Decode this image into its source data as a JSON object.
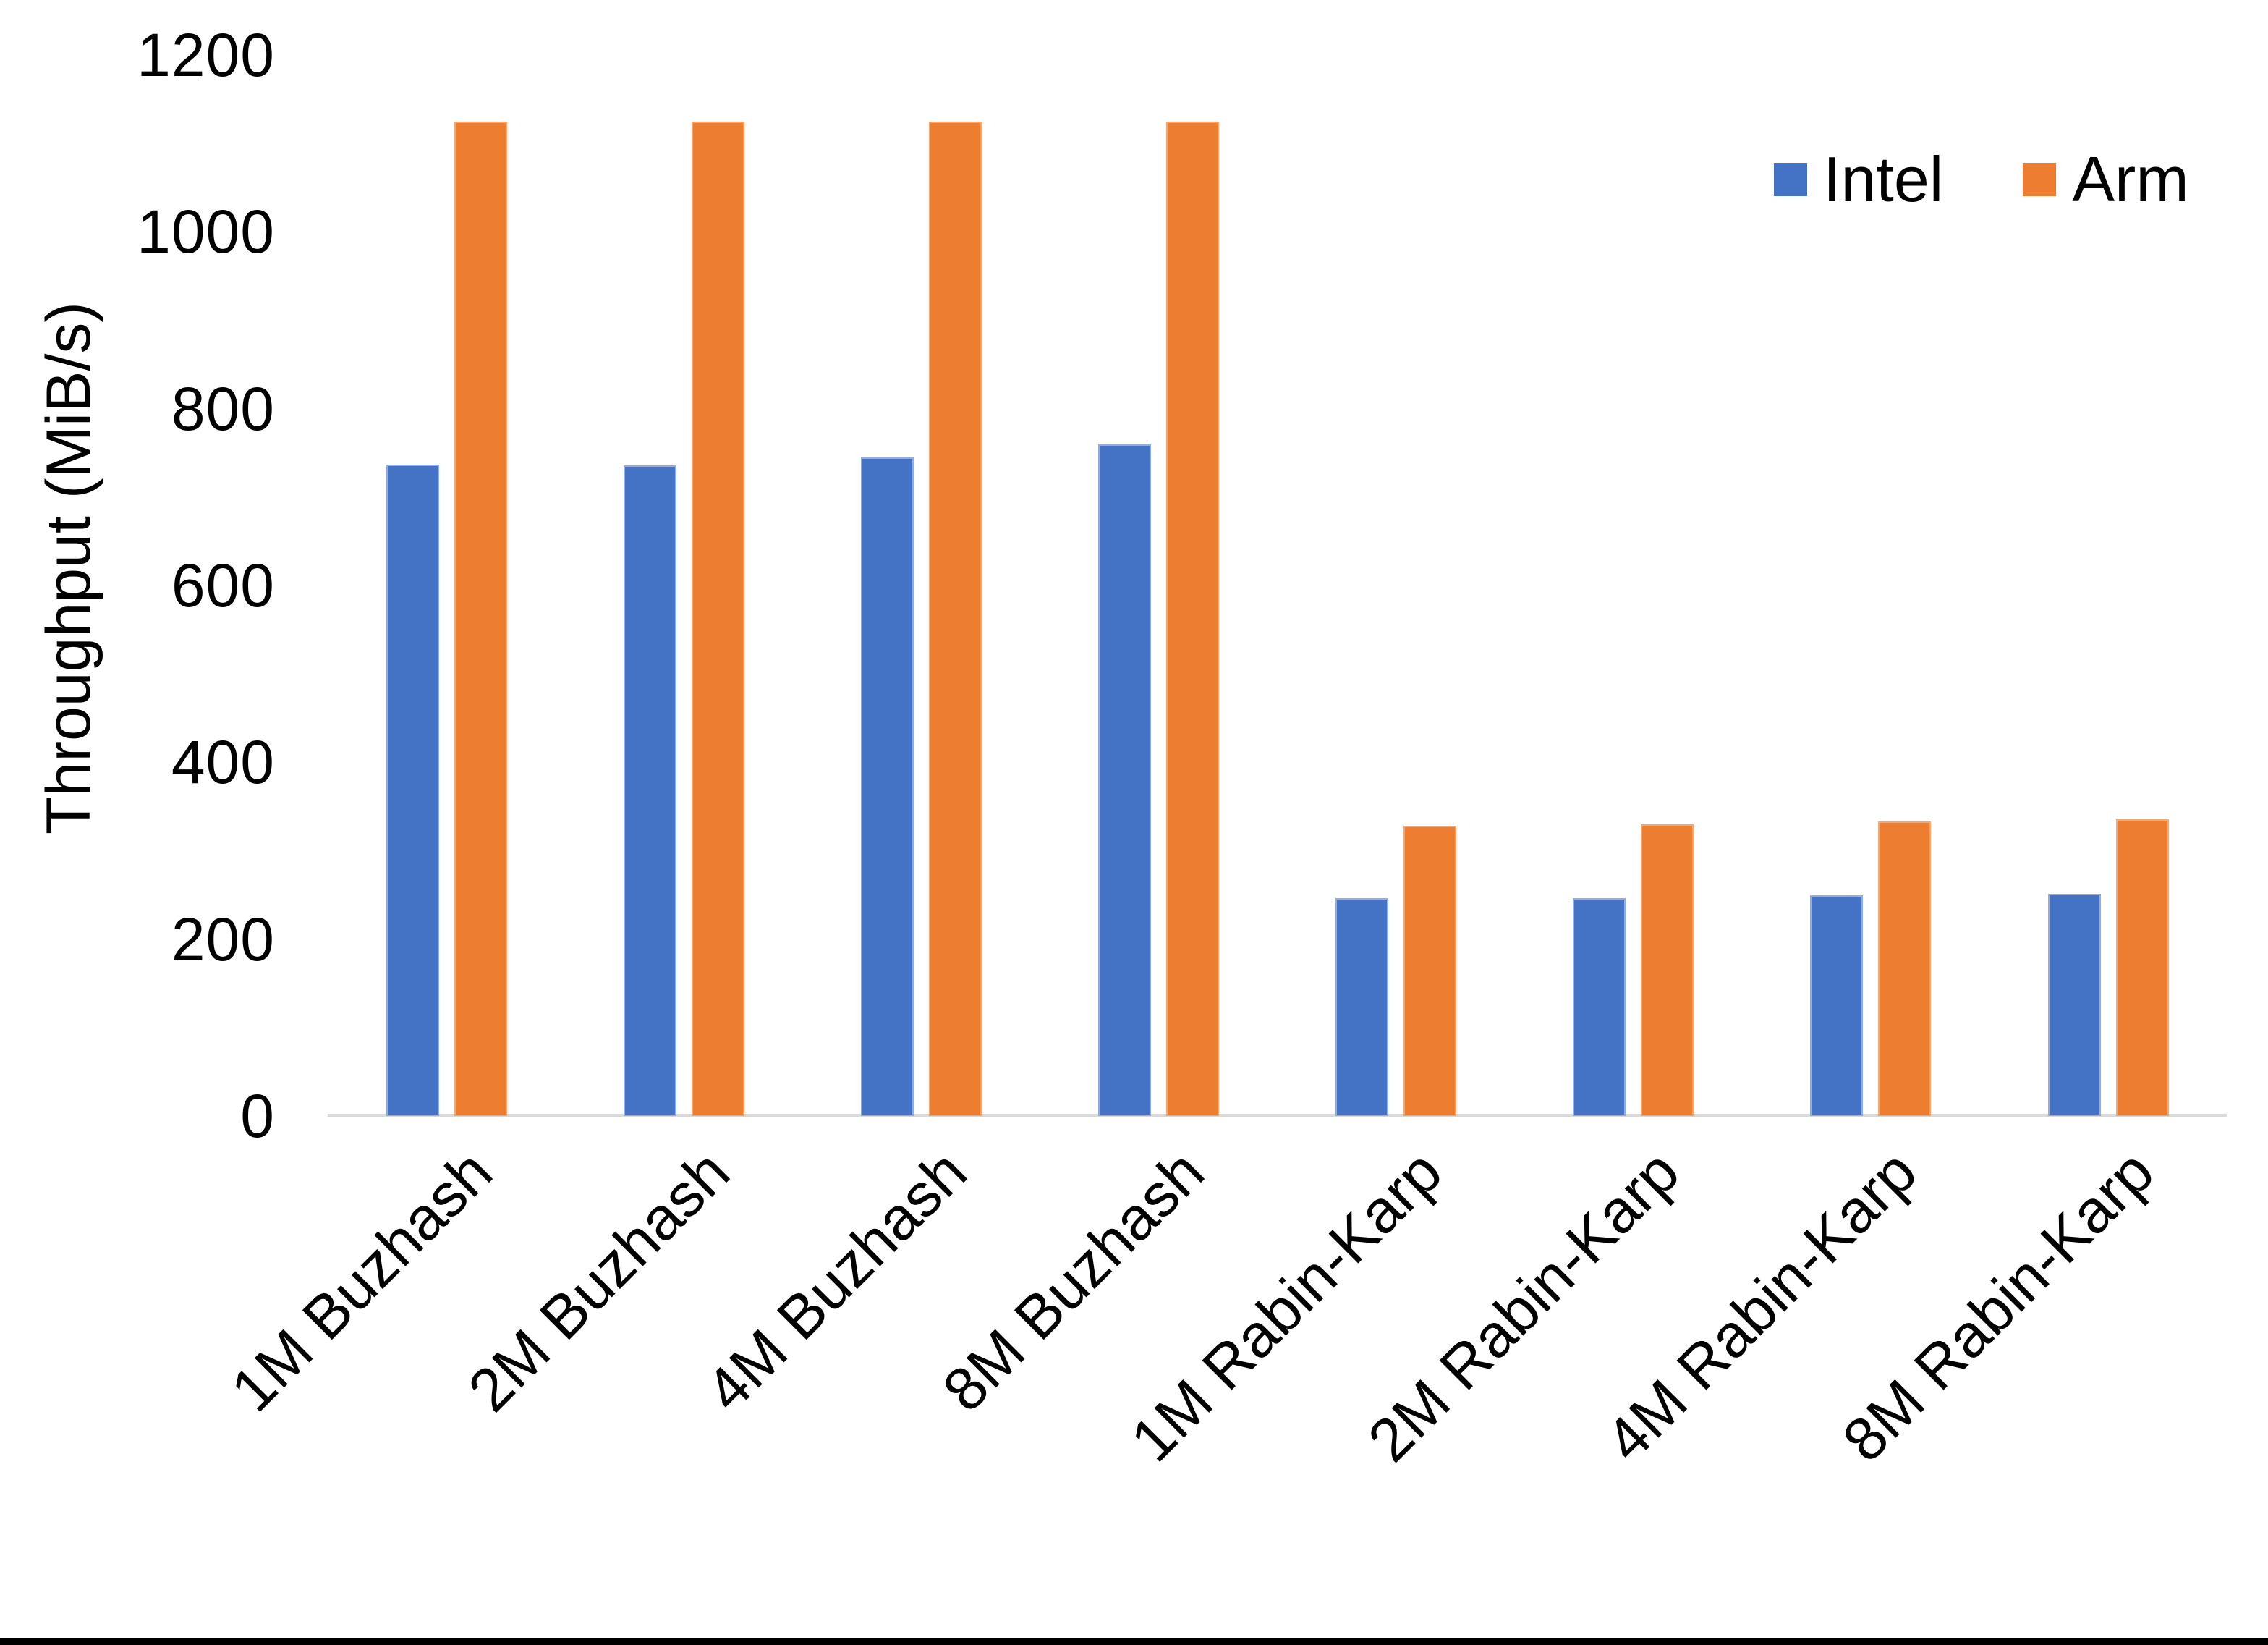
{
  "chart_data": {
    "type": "bar",
    "title": "",
    "ylabel": "Throughput (MiB/s)",
    "xlabel": "",
    "ylim": [
      0,
      1200
    ],
    "yticks": [
      0,
      200,
      400,
      600,
      800,
      1000,
      1200
    ],
    "grid": false,
    "legend_position": "top-right",
    "categories": [
      "1M Buzhash",
      "2M Buzhash",
      "4M Buzhash",
      "8M Buzhash",
      "1M Rabin-Karp",
      "2M Rabin-Karp",
      "4M Rabin-Karp",
      "8M Rabin-Karp"
    ],
    "series": [
      {
        "name": "Intel",
        "color": "#4472C4",
        "values": [
          737,
          736,
          745,
          760,
          246,
          246,
          250,
          251
        ]
      },
      {
        "name": "Arm",
        "color": "#ED7D31",
        "values": [
          1125,
          1125,
          1125,
          1125,
          328,
          330,
          333,
          336
        ]
      }
    ]
  }
}
